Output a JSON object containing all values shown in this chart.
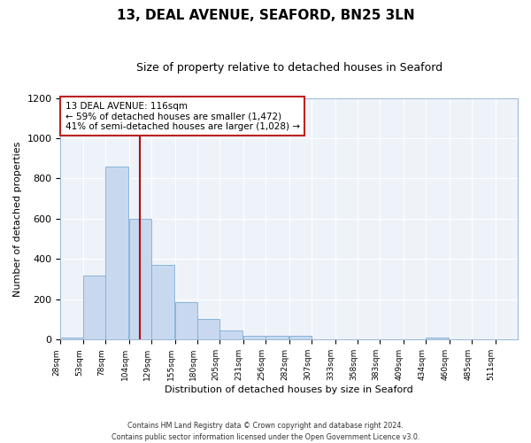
{
  "title": "13, DEAL AVENUE, SEAFORD, BN25 3LN",
  "subtitle": "Size of property relative to detached houses in Seaford",
  "xlabel": "Distribution of detached houses by size in Seaford",
  "ylabel": "Number of detached properties",
  "bar_color": "#c8d9ef",
  "bar_edge_color": "#7aadd4",
  "bg_color": "#eef2f9",
  "grid_color": "#ffffff",
  "annotation_box_color": "#bb2222",
  "vline_color": "#aa1111",
  "bins": [
    28,
    53,
    78,
    104,
    129,
    155,
    180,
    205,
    231,
    256,
    282,
    307,
    333,
    358,
    383,
    409,
    434,
    460,
    485,
    511,
    536
  ],
  "counts": [
    10,
    320,
    860,
    600,
    370,
    185,
    103,
    47,
    18,
    18,
    18,
    0,
    0,
    0,
    0,
    0,
    10,
    0,
    0,
    0
  ],
  "property_size": 116,
  "annotation_line1": "13 DEAL AVENUE: 116sqm",
  "annotation_line2": "← 59% of detached houses are smaller (1,472)",
  "annotation_line3": "41% of semi-detached houses are larger (1,028) →",
  "ylim": [
    0,
    1200
  ],
  "yticks": [
    0,
    200,
    400,
    600,
    800,
    1000,
    1200
  ],
  "footnote1": "Contains HM Land Registry data © Crown copyright and database right 2024.",
  "footnote2": "Contains public sector information licensed under the Open Government Licence v3.0."
}
